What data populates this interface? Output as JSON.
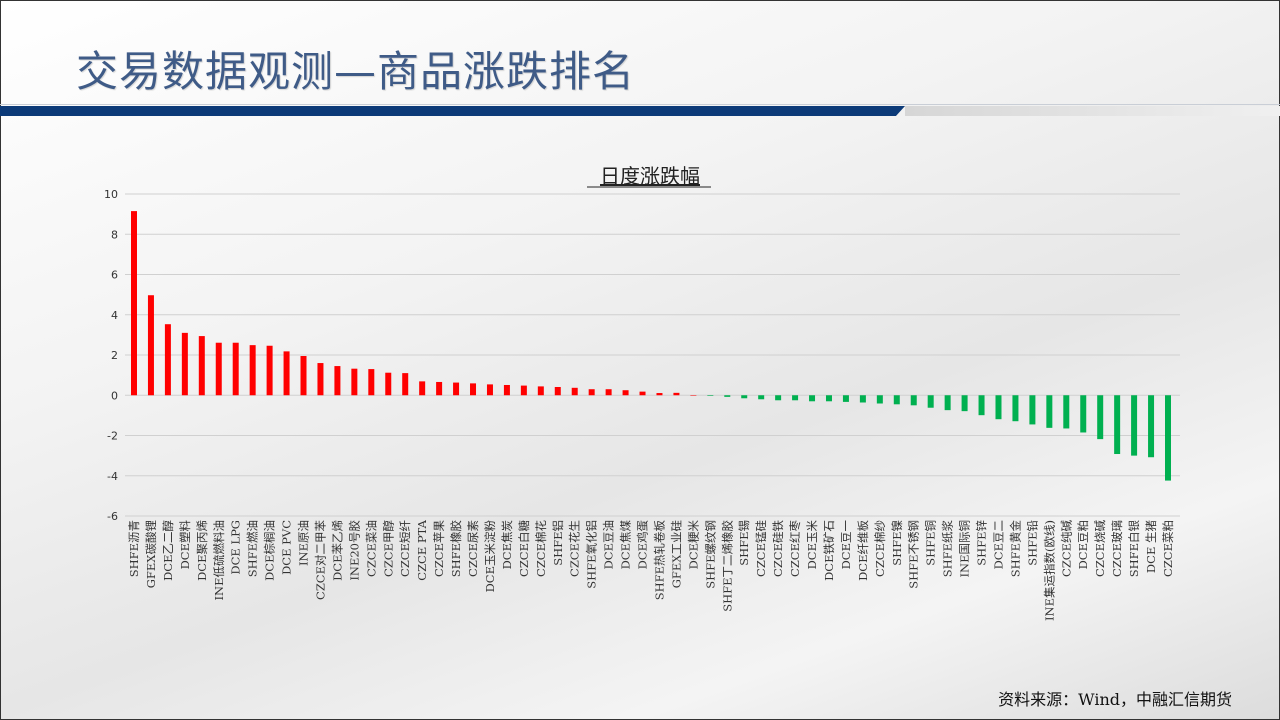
{
  "header": {
    "title": "交易数据观测—商品涨跌排名"
  },
  "footer": {
    "source": "资料来源：Wind，中融汇信期货"
  },
  "colors": {
    "up": "#ff0000",
    "down": "#00b050",
    "title": "#3f5b87",
    "accent_bar": "#0c3a78"
  },
  "chart_data": {
    "type": "bar",
    "title": "日度涨跌幅",
    "xlabel": "",
    "ylabel": "",
    "ylim": [
      -6,
      10
    ],
    "yticks": [
      10,
      8,
      6,
      4,
      2,
      0,
      -2,
      -4,
      -6
    ],
    "grid": true,
    "legend": "none",
    "categories": [
      "SHFE沥青",
      "GFEX碳酸锂",
      "DCE乙二醇",
      "DCE塑料",
      "DCE聚丙烯",
      "INE低硫燃料油",
      "DCE LPG",
      "SHFE燃油",
      "DCE棕榈油",
      "DCE PVC",
      "INE原油",
      "CZCE对二甲苯",
      "DCE苯乙烯",
      "INE20号胶",
      "CZCE菜油",
      "CZCE甲醇",
      "CZCE短纤",
      "CZCE PTA",
      "CZCE苹果",
      "SHFE橡胶",
      "CZCE尿素",
      "DCE玉米淀粉",
      "DCE焦炭",
      "CZCE白糖",
      "CZCE棉花",
      "SHFE铝",
      "CZCE花生",
      "SHFE氧化铝",
      "DCE豆油",
      "DCE焦煤",
      "DCE鸡蛋",
      "SHFE热轧卷板",
      "GFEX工业硅",
      "DCE粳米",
      "SHFE螺纹钢",
      "SHFE丁二烯橡胶",
      "SHFE锡",
      "CZCE锰硅",
      "CZCE硅铁",
      "CZCE红枣",
      "DCE玉米",
      "DCE铁矿石",
      "DCE豆一",
      "DCE纤维板",
      "CZCE棉纱",
      "SHFE镍",
      "SHFE不锈钢",
      "SHFE铜",
      "SHFE纸浆",
      "INE国际铜",
      "SHFE锌",
      "DCE豆二",
      "SHFE黄金",
      "SHFE铅",
      "INE集运指数(欧线)",
      "CZCE纯碱",
      "DCE豆粕",
      "CZCE烧碱",
      "CZCE玻璃",
      "SHFE白银",
      "DCE 生猪",
      "CZCE菜粕"
    ],
    "values": [
      9.15,
      4.97,
      3.53,
      3.1,
      2.94,
      2.61,
      2.61,
      2.49,
      2.46,
      2.18,
      1.95,
      1.6,
      1.45,
      1.32,
      1.3,
      1.12,
      1.1,
      0.69,
      0.66,
      0.63,
      0.59,
      0.54,
      0.51,
      0.48,
      0.44,
      0.41,
      0.37,
      0.3,
      0.3,
      0.25,
      0.18,
      0.11,
      0.12,
      0.01,
      -0.03,
      -0.08,
      -0.15,
      -0.2,
      -0.25,
      -0.25,
      -0.3,
      -0.3,
      -0.33,
      -0.36,
      -0.41,
      -0.45,
      -0.5,
      -0.62,
      -0.74,
      -0.79,
      -0.99,
      -1.19,
      -1.29,
      -1.45,
      -1.62,
      -1.65,
      -1.85,
      -2.18,
      -2.92,
      -3.0,
      -3.08,
      -4.24
    ]
  }
}
